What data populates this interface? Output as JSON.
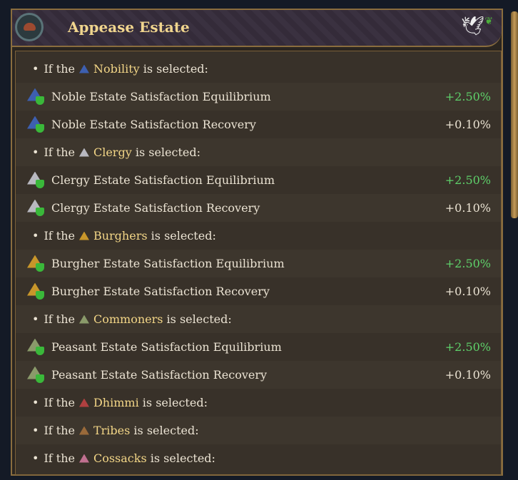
{
  "window": {
    "title": "Appease Estate",
    "emblem_icon": "cap-icon",
    "corner_icon": "dove-icon"
  },
  "colors": {
    "positive": "#5ed16a",
    "estate_name": "#f3d687",
    "text": "#ebe3d3"
  },
  "rows": [
    {
      "type": "bullet",
      "pre": "If the",
      "estate": "Nobility",
      "post": "is selected:",
      "icon_color": "#3d5fb0"
    },
    {
      "type": "mod",
      "label": "Noble Estate Satisfaction Equilibrium",
      "value": "+2.50%",
      "positive": true,
      "icon_color": "#3d5fb0"
    },
    {
      "type": "mod",
      "label": "Noble Estate Satisfaction Recovery",
      "value": "+0.10%",
      "positive": false,
      "icon_color": "#3d5fb0"
    },
    {
      "type": "bullet",
      "pre": "If the",
      "estate": "Clergy",
      "post": "is selected:",
      "icon_color": "#b8b8c0"
    },
    {
      "type": "mod",
      "label": "Clergy Estate Satisfaction Equilibrium",
      "value": "+2.50%",
      "positive": true,
      "icon_color": "#b8b8c0"
    },
    {
      "type": "mod",
      "label": "Clergy Estate Satisfaction Recovery",
      "value": "+0.10%",
      "positive": false,
      "icon_color": "#b8b8c0"
    },
    {
      "type": "bullet",
      "pre": "If the",
      "estate": "Burghers",
      "post": "is selected:",
      "icon_color": "#c8962a"
    },
    {
      "type": "mod",
      "label": "Burgher Estate Satisfaction Equilibrium",
      "value": "+2.50%",
      "positive": true,
      "icon_color": "#c8962a"
    },
    {
      "type": "mod",
      "label": "Burgher Estate Satisfaction Recovery",
      "value": "+0.10%",
      "positive": false,
      "icon_color": "#c8962a"
    },
    {
      "type": "bullet",
      "pre": "If the",
      "estate": "Commoners",
      "post": "is selected:",
      "icon_color": "#8a9a6a"
    },
    {
      "type": "mod",
      "label": "Peasant Estate Satisfaction Equilibrium",
      "value": "+2.50%",
      "positive": true,
      "icon_color": "#8a9a6a"
    },
    {
      "type": "mod",
      "label": "Peasant Estate Satisfaction Recovery",
      "value": "+0.10%",
      "positive": false,
      "icon_color": "#8a9a6a"
    },
    {
      "type": "bullet",
      "pre": "If the",
      "estate": "Dhimmi",
      "post": "is selected:",
      "icon_color": "#b04040"
    },
    {
      "type": "bullet",
      "pre": "If the",
      "estate": "Tribes",
      "post": "is selected:",
      "icon_color": "#9a6a3a"
    },
    {
      "type": "bullet",
      "pre": "If the",
      "estate": "Cossacks",
      "post": "is selected:",
      "icon_color": "#c07090"
    }
  ]
}
